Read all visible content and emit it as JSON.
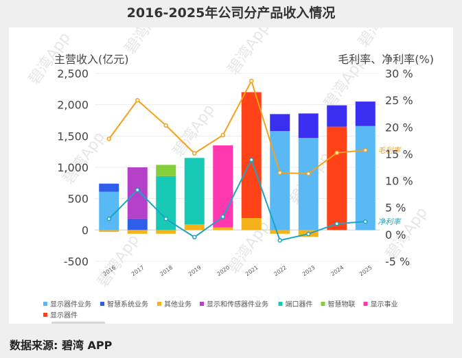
{
  "title": "2016-2025年公司分产品收入情况",
  "source": "数据来源: 碧湾 APP",
  "watermark": "碧湾App",
  "chart_data": {
    "type": "bar",
    "stacked": true,
    "categories": [
      "2016",
      "2017",
      "2018",
      "2019",
      "2020",
      "2021",
      "2022",
      "2023",
      "2024",
      "2025"
    ],
    "left_axis": {
      "label": "主营收入(亿元)",
      "ticks": [
        "-500",
        "0",
        "500",
        "1,000",
        "1,500",
        "2,000",
        "2,500"
      ],
      "range": [
        -500,
        2500
      ]
    },
    "right_axis": {
      "label": "毛利率、净利率(%)",
      "ticks": [
        "-5 %",
        "0 %",
        "5 %",
        "10 %",
        "15 %",
        "20 %",
        "25 %",
        "30 %"
      ],
      "range": [
        -5,
        30
      ]
    },
    "series": [
      {
        "name": "显示器件业务",
        "color": "#59b9f5",
        "values": [
          610,
          0,
          0,
          0,
          0,
          0,
          1580,
          1470,
          0,
          1660
        ]
      },
      {
        "name": "智慧系统业务",
        "color": "#2f5ee8",
        "values": [
          130,
          180,
          0,
          0,
          0,
          0,
          0,
          0,
          0,
          0
        ]
      },
      {
        "name": "其他业务",
        "color": "#f6b21b",
        "values": [
          -30,
          -60,
          -60,
          90,
          40,
          190,
          -60,
          -110,
          0,
          0
        ]
      },
      {
        "name": "显示和传感器件业务",
        "color": "#b540c9",
        "values": [
          0,
          820,
          0,
          0,
          0,
          0,
          0,
          0,
          0,
          0
        ]
      },
      {
        "name": "端口器件",
        "color": "#18c9b5",
        "values": [
          0,
          0,
          860,
          1060,
          0,
          0,
          0,
          0,
          0,
          0
        ]
      },
      {
        "name": "智慧物联",
        "color": "#86cf3c",
        "values": [
          0,
          0,
          180,
          0,
          0,
          0,
          0,
          0,
          0,
          0
        ]
      },
      {
        "name": "显示事业",
        "color": "#ff38b0",
        "values": [
          0,
          0,
          0,
          0,
          1310,
          0,
          0,
          0,
          0,
          0
        ]
      },
      {
        "name": "显示器件",
        "color": "#ff4218",
        "values": [
          0,
          0,
          0,
          0,
          0,
          2010,
          0,
          0,
          1650,
          0
        ]
      },
      {
        "name": "",
        "color": "#3a2ef0",
        "values": [
          0,
          0,
          0,
          0,
          0,
          0,
          270,
          390,
          340,
          390
        ]
      }
    ],
    "lines": [
      {
        "name": "毛利率",
        "color": "#f4a01c",
        "axis": "right",
        "values": [
          17.8,
          25.0,
          20.3,
          15.1,
          18.5,
          28.6,
          11.5,
          11.3,
          15.2,
          15.7
        ]
      },
      {
        "name": "净利率",
        "color": "#1ca3c4",
        "axis": "right",
        "values": [
          2.9,
          8.3,
          2.9,
          -0.5,
          3.3,
          13.9,
          -1.1,
          0.1,
          2.0,
          2.4
        ]
      }
    ],
    "legend_position": "bottom",
    "grid": true
  }
}
